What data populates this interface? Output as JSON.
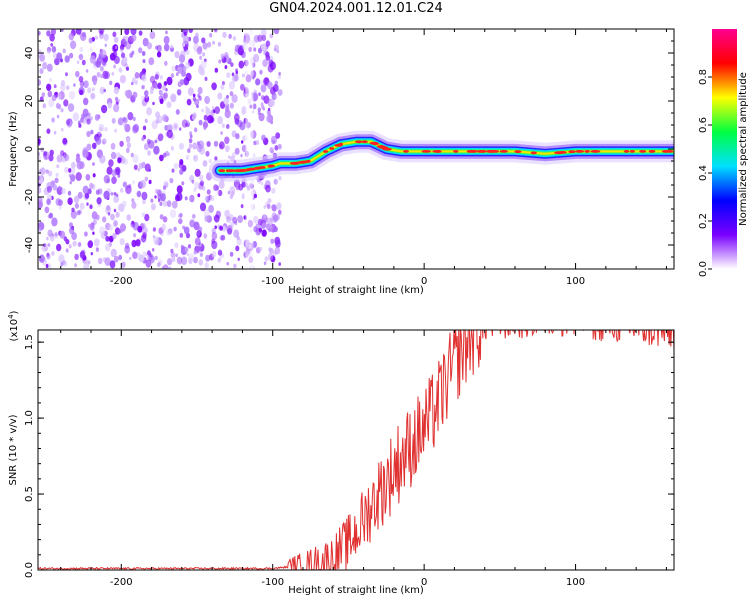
{
  "title": "GN04.2024.001.12.01.C24",
  "chart_data": [
    {
      "type": "heatmap",
      "xlabel": "Height of straight line (km)",
      "ylabel": "Frequency (Hz)",
      "xlim": [
        -255,
        165
      ],
      "ylim": [
        -50,
        50
      ],
      "x_ticks": [
        -200,
        -100,
        0,
        100
      ],
      "y_ticks": [
        -40,
        -20,
        0,
        20,
        40
      ],
      "noise_region_x": [
        -255,
        -95
      ],
      "signal_ridge": {
        "x": [
          -135,
          -120,
          -110,
          -100,
          -95,
          -85,
          -75,
          -65,
          -55,
          -45,
          -35,
          -25,
          -15,
          0,
          20,
          40,
          60,
          80,
          100,
          120,
          140,
          165
        ],
        "frequency": [
          -9,
          -9,
          -8,
          -7,
          -6,
          -6,
          -5,
          -1,
          2,
          3,
          3,
          0,
          -1,
          -1,
          -1,
          -1,
          -1,
          -2,
          -1,
          -1,
          -1,
          -1
        ]
      },
      "colorbar": {
        "label": "Normalized spectral amplitude",
        "range": [
          0.0,
          1.0
        ],
        "ticks": [
          "0.0",
          "0.2",
          "0.4",
          "0.6",
          "0.8"
        ],
        "colormap": [
          "#ffffff",
          "#7a00ff",
          "#0000ff",
          "#00e0ff",
          "#00ff40",
          "#ffff00",
          "#ff0000",
          "#ff0090"
        ]
      }
    },
    {
      "type": "line",
      "xlabel": "Height of straight line (km)",
      "ylabel": "SNR (10 * v/v)",
      "y_multiplier": "(x10",
      "y_multiplier_exp": "4",
      "y_multiplier_close": ")",
      "xlim": [
        -255,
        165
      ],
      "ylim": [
        0,
        1.58
      ],
      "x_ticks": [
        -200,
        -100,
        0,
        100
      ],
      "y_ticks": [
        "0.0",
        "0.5",
        "1.0",
        "1.5"
      ],
      "color": "#e03030",
      "series": [
        {
          "x": [
            -255,
            -200,
            -150,
            -100,
            -90,
            -80,
            -70,
            -60,
            -55,
            -50,
            -45,
            -40,
            -35,
            -30,
            -25,
            -20,
            -15,
            -10,
            -5,
            0,
            5,
            10,
            15,
            20,
            25,
            30,
            35,
            40,
            50,
            60,
            70,
            80,
            90,
            100,
            110,
            120,
            130,
            140,
            150,
            165
          ],
          "values": [
            0.01,
            0.01,
            0.01,
            0.01,
            0.02,
            0.03,
            0.05,
            0.08,
            0.13,
            0.18,
            0.25,
            0.33,
            0.42,
            0.5,
            0.58,
            0.66,
            0.74,
            0.8,
            0.87,
            0.93,
            1.02,
            1.12,
            1.24,
            1.35,
            1.44,
            1.52,
            1.58,
            1.62,
            1.63,
            1.64,
            1.64,
            1.66,
            1.66,
            1.65,
            1.63,
            1.62,
            1.61,
            1.6,
            1.58,
            1.56
          ]
        }
      ]
    }
  ]
}
